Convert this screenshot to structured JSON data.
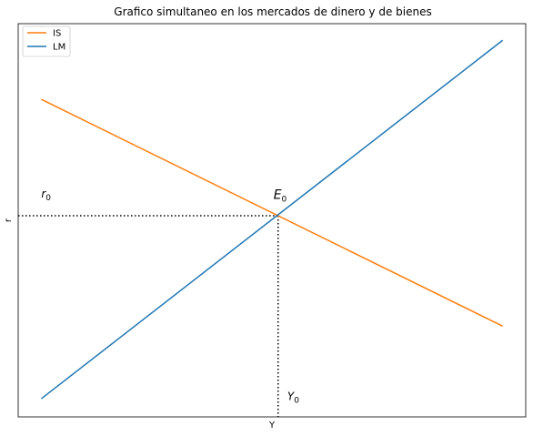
{
  "chart_data": {
    "type": "line",
    "title": "Grafico simultaneo en los mercados de dinero y de bienes",
    "xlabel": "Y",
    "ylabel": "r",
    "xlim": [
      -1.5,
      31.5
    ],
    "ylim": [
      -0.5,
      25.5
    ],
    "grid": false,
    "show_ticks": false,
    "legend_position": "top-left",
    "series": [
      {
        "name": "IS",
        "color": "#ff7f0e",
        "x": [
          0,
          30
        ],
        "y": [
          20.5,
          5.5
        ]
      },
      {
        "name": "LM",
        "color": "#1f77b4",
        "x": [
          0,
          30
        ],
        "y": [
          0.7,
          24.4
        ]
      }
    ],
    "equilibrium": {
      "x": 15.4,
      "y": 12.8,
      "line_color": "#000000",
      "line_style": "dotted"
    },
    "annotations": [
      {
        "text": "r",
        "sub": "0",
        "x": 0.0,
        "y": 14.0
      },
      {
        "text": "E",
        "sub": "0",
        "x": 15.1,
        "y": 13.9,
        "size": "large"
      },
      {
        "text": "Y",
        "sub": "0",
        "x": 16.0,
        "y": 0.6
      }
    ]
  }
}
